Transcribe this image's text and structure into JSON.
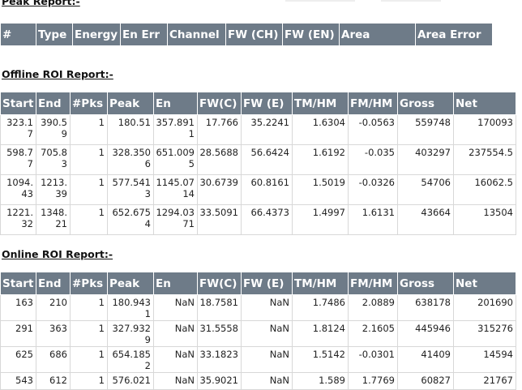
{
  "peak_report": {
    "title": "Peak Report:-",
    "columns": [
      "#",
      "Type",
      "Energy",
      "En Err",
      "Channel",
      "FW (CH)",
      "FW (EN)",
      "Area",
      "Area Error"
    ]
  },
  "offline_roi": {
    "title": "Offline ROI Report:-",
    "columns": [
      "Start",
      "End",
      "#Pks",
      "Peak",
      "En",
      "FW(C)",
      "FW (E)",
      "TM/HM",
      "FM/HM",
      "Gross",
      "Net"
    ],
    "rows": [
      [
        "323.17",
        "390.59",
        "1",
        "180.51",
        "357.8911",
        "17.766",
        "35.2241",
        "1.6304",
        "-0.0563",
        "559748",
        "170093"
      ],
      [
        "598.77",
        "705.83",
        "1",
        "328.3506",
        "651.0095",
        "28.5688",
        "56.6424",
        "1.6192",
        "-0.035",
        "403297",
        "237554.5"
      ],
      [
        "1094.43",
        "1213.39",
        "1",
        "577.5413",
        "1145.0714",
        "30.6739",
        "60.8161",
        "1.5019",
        "-0.0326",
        "54706",
        "16062.5"
      ],
      [
        "1221.32",
        "1348.21",
        "1",
        "652.6754",
        "1294.0371",
        "33.5091",
        "66.4373",
        "1.4997",
        "1.6131",
        "43664",
        "13504"
      ]
    ]
  },
  "online_roi": {
    "title": "Online ROI Report:-",
    "columns": [
      "Start",
      "End",
      "#Pks",
      "Peak",
      "En",
      "FW(C)",
      "FW (E)",
      "TM/HM",
      "FM/HM",
      "Gross",
      "Net"
    ],
    "rows": [
      [
        "163",
        "210",
        "1",
        "180.9431",
        "NaN",
        "18.7581",
        "NaN",
        "1.7486",
        "2.0889",
        "638178",
        "201690"
      ],
      [
        "291",
        "363",
        "1",
        "327.9329",
        "NaN",
        "31.5558",
        "NaN",
        "1.8124",
        "2.1605",
        "445946",
        "315276"
      ],
      [
        "625",
        "686",
        "1",
        "654.1852",
        "NaN",
        "33.1823",
        "NaN",
        "1.5142",
        "-0.0301",
        "41409",
        "14594"
      ],
      [
        "543",
        "612",
        "1",
        "576.021",
        "NaN",
        "35.9021",
        "NaN",
        "1.589",
        "1.7769",
        "60827",
        "21767"
      ]
    ]
  }
}
